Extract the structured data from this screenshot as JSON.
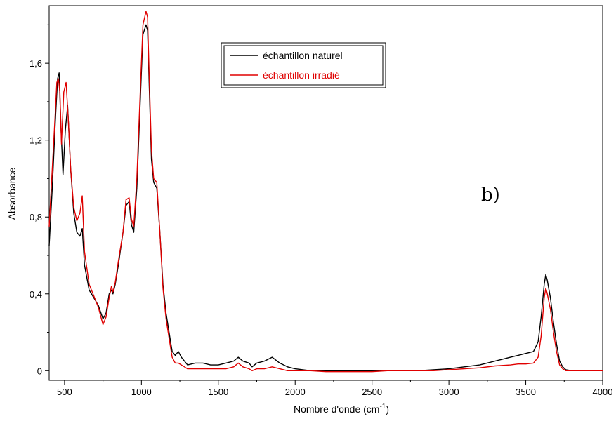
{
  "chart_data": {
    "type": "line",
    "xlabel": "Nombre d'onde (cm",
    "xlabel_sup": "-1",
    "xlabel_suffix": ")",
    "ylabel": "Absorbance",
    "xlim": [
      400,
      4000
    ],
    "ylim": [
      -0.05,
      1.9
    ],
    "x_ticks": [
      500,
      1000,
      1500,
      2000,
      2500,
      3000,
      3500,
      4000
    ],
    "x_tick_labels": [
      "500",
      "1000",
      "1500",
      "2000",
      "2500",
      "3000",
      "3500",
      "4000"
    ],
    "y_ticks": [
      0,
      0.4,
      0.8,
      1.2,
      1.6
    ],
    "y_tick_labels": [
      "0",
      "0,4",
      "0,8",
      "1,2",
      "1,6"
    ],
    "annotation": "b)",
    "legend_position": "top-center",
    "series": [
      {
        "name": "échantillon naturel",
        "color": "#000000",
        "x": [
          400,
          420,
          440,
          455,
          465,
          475,
          490,
          505,
          520,
          540,
          560,
          580,
          600,
          615,
          630,
          660,
          690,
          720,
          750,
          770,
          790,
          805,
          815,
          830,
          850,
          880,
          900,
          920,
          935,
          950,
          970,
          990,
          1010,
          1030,
          1040,
          1050,
          1065,
          1080,
          1100,
          1120,
          1140,
          1160,
          1180,
          1200,
          1220,
          1240,
          1260,
          1280,
          1300,
          1350,
          1400,
          1450,
          1500,
          1550,
          1600,
          1630,
          1660,
          1700,
          1720,
          1750,
          1800,
          1850,
          1900,
          1950,
          2000,
          2100,
          2200,
          2300,
          2400,
          2500,
          2600,
          2700,
          2800,
          2900,
          3000,
          3100,
          3200,
          3300,
          3400,
          3450,
          3500,
          3550,
          3580,
          3600,
          3620,
          3630,
          3640,
          3660,
          3680,
          3700,
          3720,
          3740,
          3760,
          3800,
          3900,
          4000
        ],
        "y": [
          0.65,
          0.95,
          1.3,
          1.52,
          1.55,
          1.3,
          1.02,
          1.25,
          1.38,
          1.05,
          0.82,
          0.72,
          0.7,
          0.74,
          0.55,
          0.42,
          0.38,
          0.34,
          0.27,
          0.3,
          0.4,
          0.42,
          0.4,
          0.45,
          0.55,
          0.72,
          0.86,
          0.88,
          0.76,
          0.72,
          0.95,
          1.35,
          1.75,
          1.8,
          1.77,
          1.5,
          1.1,
          0.98,
          0.95,
          0.72,
          0.45,
          0.3,
          0.2,
          0.1,
          0.08,
          0.1,
          0.07,
          0.05,
          0.03,
          0.04,
          0.04,
          0.03,
          0.03,
          0.04,
          0.05,
          0.07,
          0.05,
          0.04,
          0.02,
          0.04,
          0.05,
          0.07,
          0.04,
          0.02,
          0.01,
          0.0,
          0.0,
          0.0,
          0.0,
          0.0,
          0.0,
          0.0,
          0.0,
          0.005,
          0.01,
          0.02,
          0.03,
          0.05,
          0.07,
          0.08,
          0.09,
          0.1,
          0.15,
          0.28,
          0.45,
          0.5,
          0.47,
          0.38,
          0.25,
          0.14,
          0.05,
          0.02,
          0.005,
          0.0,
          0.0,
          0.0
        ]
      },
      {
        "name": "échantillon irradié",
        "color": "#e00000",
        "x": [
          400,
          420,
          440,
          450,
          460,
          470,
          480,
          495,
          510,
          525,
          540,
          560,
          580,
          600,
          615,
          630,
          660,
          690,
          720,
          750,
          770,
          790,
          805,
          815,
          830,
          850,
          880,
          900,
          920,
          935,
          950,
          970,
          990,
          1010,
          1030,
          1040,
          1050,
          1065,
          1080,
          1100,
          1120,
          1140,
          1160,
          1180,
          1200,
          1220,
          1240,
          1260,
          1280,
          1300,
          1350,
          1400,
          1450,
          1500,
          1550,
          1600,
          1630,
          1660,
          1700,
          1720,
          1750,
          1800,
          1850,
          1900,
          1950,
          2000,
          2100,
          2200,
          2300,
          2400,
          2500,
          2600,
          2700,
          2800,
          2900,
          3000,
          3100,
          3200,
          3300,
          3400,
          3450,
          3500,
          3550,
          3580,
          3600,
          3620,
          3630,
          3640,
          3660,
          3680,
          3700,
          3720,
          3740,
          3760,
          3800,
          3900,
          4000
        ],
        "y": [
          0.75,
          1.05,
          1.35,
          1.5,
          1.52,
          1.45,
          1.18,
          1.45,
          1.5,
          1.3,
          1.05,
          0.85,
          0.78,
          0.82,
          0.91,
          0.62,
          0.45,
          0.39,
          0.33,
          0.24,
          0.28,
          0.38,
          0.44,
          0.41,
          0.46,
          0.57,
          0.72,
          0.89,
          0.9,
          0.79,
          0.75,
          1.0,
          1.4,
          1.8,
          1.87,
          1.84,
          1.55,
          1.15,
          1.0,
          0.98,
          0.72,
          0.43,
          0.27,
          0.17,
          0.07,
          0.04,
          0.04,
          0.03,
          0.02,
          0.01,
          0.01,
          0.01,
          0.01,
          0.01,
          0.01,
          0.02,
          0.04,
          0.02,
          0.01,
          0.0,
          0.01,
          0.01,
          0.02,
          0.01,
          0.0,
          0.0,
          0.0,
          -0.005,
          -0.005,
          -0.005,
          -0.005,
          0.0,
          0.0,
          0.0,
          0.0,
          0.005,
          0.01,
          0.015,
          0.025,
          0.03,
          0.035,
          0.035,
          0.04,
          0.07,
          0.18,
          0.38,
          0.43,
          0.4,
          0.32,
          0.2,
          0.1,
          0.03,
          0.01,
          0.0,
          0.0,
          0.0,
          0.0
        ]
      }
    ]
  }
}
